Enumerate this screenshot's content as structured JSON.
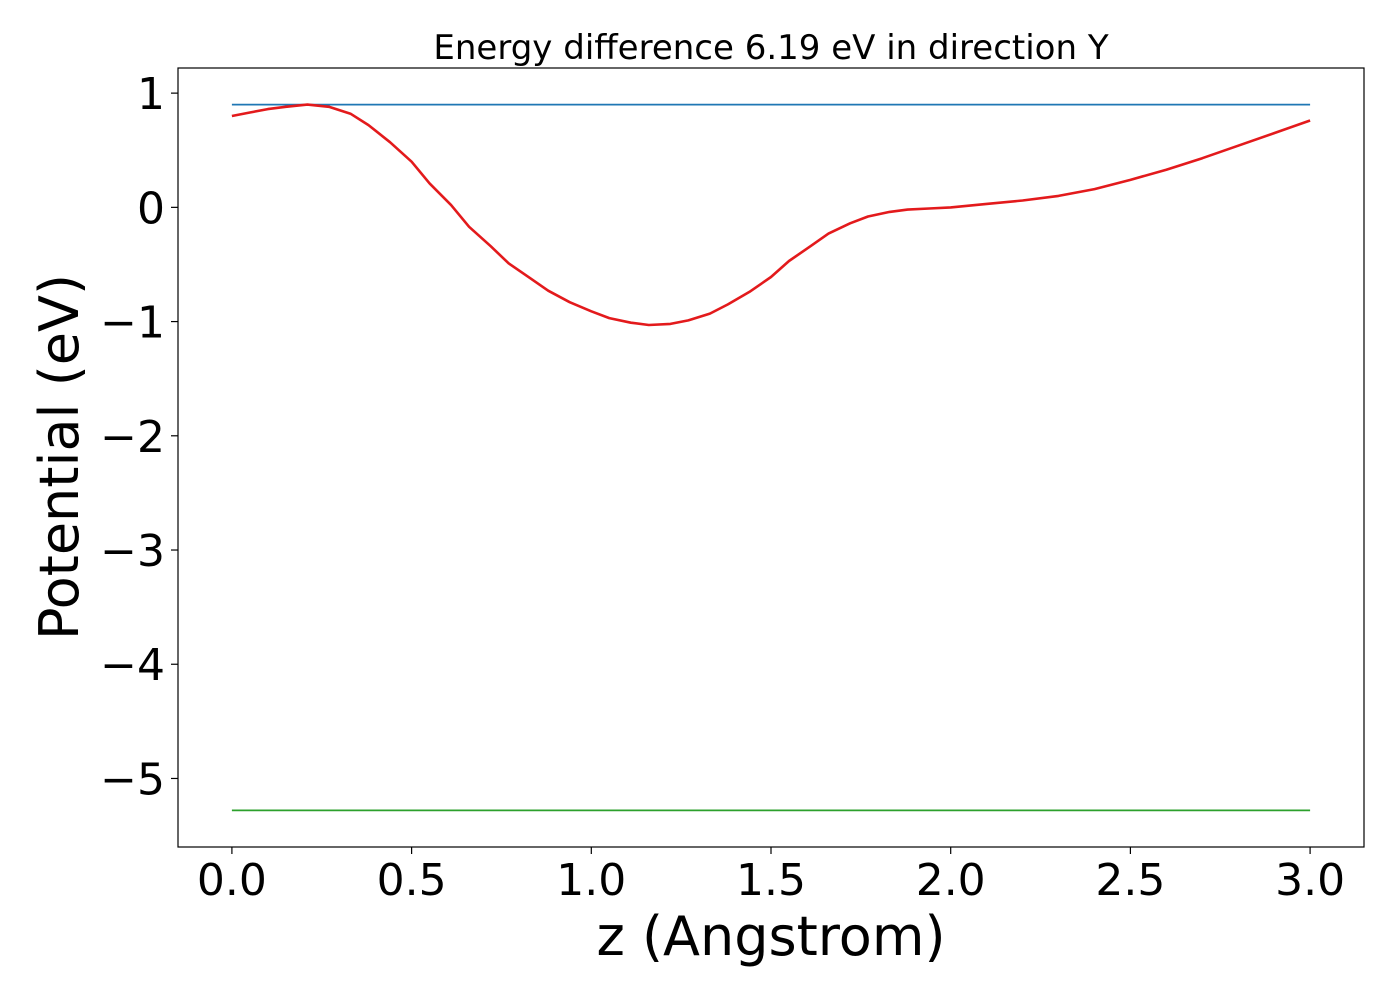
{
  "chart_data": {
    "type": "line",
    "title": "Energy difference 6.19 eV in direction Y",
    "xlabel": "z (Angstrom)",
    "ylabel": "Potential (eV)",
    "xlim": [
      -0.15,
      3.15
    ],
    "ylim": [
      -5.6,
      1.22
    ],
    "x_ticks": [
      0.0,
      0.5,
      1.0,
      1.5,
      2.0,
      2.5,
      3.0
    ],
    "x_tick_labels": [
      "0.0",
      "0.5",
      "1.0",
      "1.5",
      "2.0",
      "2.5",
      "3.0"
    ],
    "y_ticks": [
      1,
      0,
      -1,
      -2,
      -3,
      -4,
      -5
    ],
    "y_tick_labels": [
      "1",
      "0",
      "−1",
      "−2",
      "−3",
      "−4",
      "−5"
    ],
    "grid": false,
    "legend": "none",
    "series": [
      {
        "color": "#1f77b4",
        "x": [
          0.0,
          3.0
        ],
        "y": [
          0.9,
          0.9
        ]
      },
      {
        "color": "#2ca02c",
        "x": [
          0.0,
          3.0
        ],
        "y": [
          -5.28,
          -5.28
        ]
      },
      {
        "color": "#e31a1c",
        "x": [
          0.0,
          0.05,
          0.1,
          0.15,
          0.21,
          0.27,
          0.33,
          0.38,
          0.44,
          0.5,
          0.55,
          0.61,
          0.66,
          0.72,
          0.77,
          0.83,
          0.88,
          0.94,
          1.0,
          1.05,
          1.11,
          1.16,
          1.22,
          1.27,
          1.33,
          1.38,
          1.44,
          1.5,
          1.55,
          1.61,
          1.66,
          1.72,
          1.77,
          1.83,
          1.88,
          1.94,
          2.0,
          2.1,
          2.2,
          2.3,
          2.4,
          2.5,
          2.6,
          2.7,
          2.8,
          2.9,
          3.0
        ],
        "y": [
          0.8,
          0.83,
          0.86,
          0.88,
          0.9,
          0.88,
          0.82,
          0.72,
          0.57,
          0.4,
          0.21,
          0.02,
          -0.17,
          -0.34,
          -0.49,
          -0.62,
          -0.73,
          -0.83,
          -0.91,
          -0.97,
          -1.01,
          -1.03,
          -1.02,
          -0.99,
          -0.93,
          -0.85,
          -0.74,
          -0.61,
          -0.47,
          -0.34,
          -0.23,
          -0.14,
          -0.08,
          -0.04,
          -0.02,
          -0.01,
          0.0,
          0.03,
          0.06,
          0.1,
          0.16,
          0.24,
          0.33,
          0.43,
          0.54,
          0.65,
          0.76
        ]
      }
    ]
  }
}
